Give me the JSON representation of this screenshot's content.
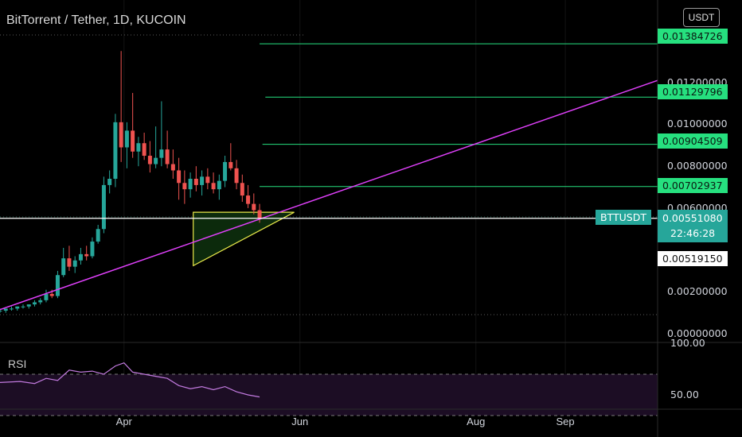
{
  "header": {
    "title": "BitTorrent / Tether, 1D, KUCOIN",
    "currency": "USDT"
  },
  "indicator": {
    "name": "RSI"
  },
  "price_tags": {
    "levels": [
      "0.01384726",
      "0.01129796",
      "0.00904509",
      "0.00702937"
    ],
    "symbol": "BTTUSDT",
    "last_price": "0.00551080",
    "countdown": "22:46:28",
    "marker": "0.00519150"
  },
  "colors": {
    "background": "#000000",
    "up": "#26a69a",
    "down": "#ef5350",
    "levels": "#26e07f",
    "trendline": "#e040fb",
    "triangle_edge": "#e8e84a",
    "triangle_fill": "#0c2a0c",
    "rsi": "#c27adf"
  },
  "chart_data": [
    {
      "type": "candlestick",
      "title": "BitTorrent / Tether, 1D, KUCOIN",
      "y_ticks": [
        "0.01200000",
        "0.01000000",
        "0.00800000",
        "0.00600000",
        "0.00200000",
        "0.00000000"
      ],
      "x_ticks": [
        {
          "label": "Apr",
          "date": "2021-04-01"
        },
        {
          "label": "Jun",
          "date": "2021-06-01"
        },
        {
          "label": "Aug",
          "date": "2021-08-01"
        },
        {
          "label": "Sep",
          "date": "2021-09-01"
        }
      ],
      "ylim": [
        0,
        0.0148
      ],
      "xlim": [
        "2021-02-17",
        "2021-10-03"
      ],
      "horizontal_levels": [
        {
          "value": 0.01384726,
          "from": "2021-05-18"
        },
        {
          "value": 0.01129796,
          "from": "2021-05-20"
        },
        {
          "value": 0.00904509,
          "from": "2021-05-19"
        },
        {
          "value": 0.00702937,
          "from": "2021-05-18"
        }
      ],
      "last_price": 0.0055108,
      "trendline": {
        "from": [
          "2021-02-17",
          0.00115
        ],
        "to": [
          "2021-10-03",
          0.0121
        ]
      },
      "triangle": [
        [
          "2021-04-25",
          0.0058
        ],
        [
          "2021-04-25",
          0.00325
        ],
        [
          "2021-05-30",
          0.0058
        ]
      ],
      "ohlc": [
        [
          "2021-02-17",
          0.0011,
          0.0012,
          0.001,
          0.0011
        ],
        [
          "2021-02-19",
          0.0011,
          0.0012,
          0.001,
          0.0012
        ],
        [
          "2021-02-21",
          0.0012,
          0.0013,
          0.0011,
          0.0012
        ],
        [
          "2021-02-23",
          0.0012,
          0.0013,
          0.0011,
          0.0013
        ],
        [
          "2021-02-25",
          0.0013,
          0.0014,
          0.0012,
          0.0013
        ],
        [
          "2021-02-27",
          0.0013,
          0.0014,
          0.0012,
          0.0014
        ],
        [
          "2021-03-01",
          0.0014,
          0.0016,
          0.0013,
          0.0015
        ],
        [
          "2021-03-03",
          0.0015,
          0.0017,
          0.0014,
          0.0016
        ],
        [
          "2021-03-05",
          0.0016,
          0.0021,
          0.0015,
          0.0019
        ],
        [
          "2021-03-07",
          0.0019,
          0.0021,
          0.0017,
          0.0018
        ],
        [
          "2021-03-09",
          0.0018,
          0.003,
          0.0017,
          0.0028
        ],
        [
          "2021-03-11",
          0.0028,
          0.0041,
          0.0027,
          0.0036
        ],
        [
          "2021-03-13",
          0.0036,
          0.0042,
          0.003,
          0.0032
        ],
        [
          "2021-03-15",
          0.0032,
          0.0037,
          0.0029,
          0.0035
        ],
        [
          "2021-03-17",
          0.0035,
          0.0041,
          0.0033,
          0.0038
        ],
        [
          "2021-03-19",
          0.0038,
          0.0042,
          0.0035,
          0.0037
        ],
        [
          "2021-03-21",
          0.0037,
          0.0046,
          0.0036,
          0.0044
        ],
        [
          "2021-03-23",
          0.0044,
          0.0052,
          0.0043,
          0.005
        ],
        [
          "2021-03-25",
          0.005,
          0.0075,
          0.0048,
          0.0071
        ],
        [
          "2021-03-27",
          0.0071,
          0.0078,
          0.0067,
          0.0074
        ],
        [
          "2021-03-29",
          0.0074,
          0.0105,
          0.007,
          0.0101
        ],
        [
          "2021-03-31",
          0.0101,
          0.0135,
          0.0082,
          0.0089
        ],
        [
          "2021-04-02",
          0.0089,
          0.0101,
          0.0079,
          0.0097
        ],
        [
          "2021-04-04",
          0.0097,
          0.0115,
          0.0084,
          0.0087
        ],
        [
          "2021-04-06",
          0.0087,
          0.0094,
          0.008,
          0.0091
        ],
        [
          "2021-04-08",
          0.0091,
          0.0096,
          0.0083,
          0.0085
        ],
        [
          "2021-04-10",
          0.0085,
          0.0092,
          0.0077,
          0.0081
        ],
        [
          "2021-04-12",
          0.0081,
          0.0099,
          0.0079,
          0.0084
        ],
        [
          "2021-04-14",
          0.0084,
          0.0111,
          0.008,
          0.0088
        ],
        [
          "2021-04-16",
          0.0088,
          0.0097,
          0.0079,
          0.0081
        ],
        [
          "2021-04-18",
          0.0081,
          0.0088,
          0.0074,
          0.0078
        ],
        [
          "2021-04-20",
          0.0078,
          0.0084,
          0.0064,
          0.0072
        ],
        [
          "2021-04-22",
          0.0072,
          0.0078,
          0.0062,
          0.0069
        ],
        [
          "2021-04-24",
          0.0069,
          0.0077,
          0.0065,
          0.0074
        ],
        [
          "2021-04-26",
          0.0074,
          0.008,
          0.0068,
          0.0071
        ],
        [
          "2021-04-28",
          0.0071,
          0.0078,
          0.0066,
          0.0075
        ],
        [
          "2021-04-30",
          0.0075,
          0.0079,
          0.0069,
          0.0072
        ],
        [
          "2021-05-02",
          0.0072,
          0.0077,
          0.0067,
          0.0069
        ],
        [
          "2021-05-04",
          0.0069,
          0.0076,
          0.0064,
          0.0073
        ],
        [
          "2021-05-06",
          0.0073,
          0.0085,
          0.007,
          0.0082
        ],
        [
          "2021-05-08",
          0.0082,
          0.0091,
          0.0078,
          0.0079
        ],
        [
          "2021-05-10",
          0.0079,
          0.0083,
          0.0069,
          0.0072
        ],
        [
          "2021-05-12",
          0.0072,
          0.0076,
          0.0063,
          0.0066
        ],
        [
          "2021-05-14",
          0.0066,
          0.0071,
          0.006,
          0.0062
        ],
        [
          "2021-05-16",
          0.0062,
          0.0067,
          0.0057,
          0.0059
        ],
        [
          "2021-05-18",
          0.0059,
          0.0062,
          0.0053,
          0.0055
        ]
      ]
    },
    {
      "type": "line",
      "title": "RSI",
      "y_ticks": [
        "100.00",
        "50.00"
      ],
      "ylim": [
        40,
        100
      ],
      "bands": [
        70,
        30
      ],
      "x": [
        "2021-02-17",
        "2021-02-24",
        "2021-03-01",
        "2021-03-05",
        "2021-03-09",
        "2021-03-13",
        "2021-03-17",
        "2021-03-21",
        "2021-03-25",
        "2021-03-29",
        "2021-04-01",
        "2021-04-04",
        "2021-04-08",
        "2021-04-12",
        "2021-04-16",
        "2021-04-20",
        "2021-04-24",
        "2021-04-28",
        "2021-05-02",
        "2021-05-06",
        "2021-05-10",
        "2021-05-14",
        "2021-05-18"
      ],
      "values": [
        62,
        63,
        61,
        66,
        64,
        74,
        72,
        73,
        70,
        78,
        81,
        72,
        70,
        68,
        66,
        59,
        56,
        58,
        55,
        58,
        53,
        50,
        48
      ]
    }
  ]
}
